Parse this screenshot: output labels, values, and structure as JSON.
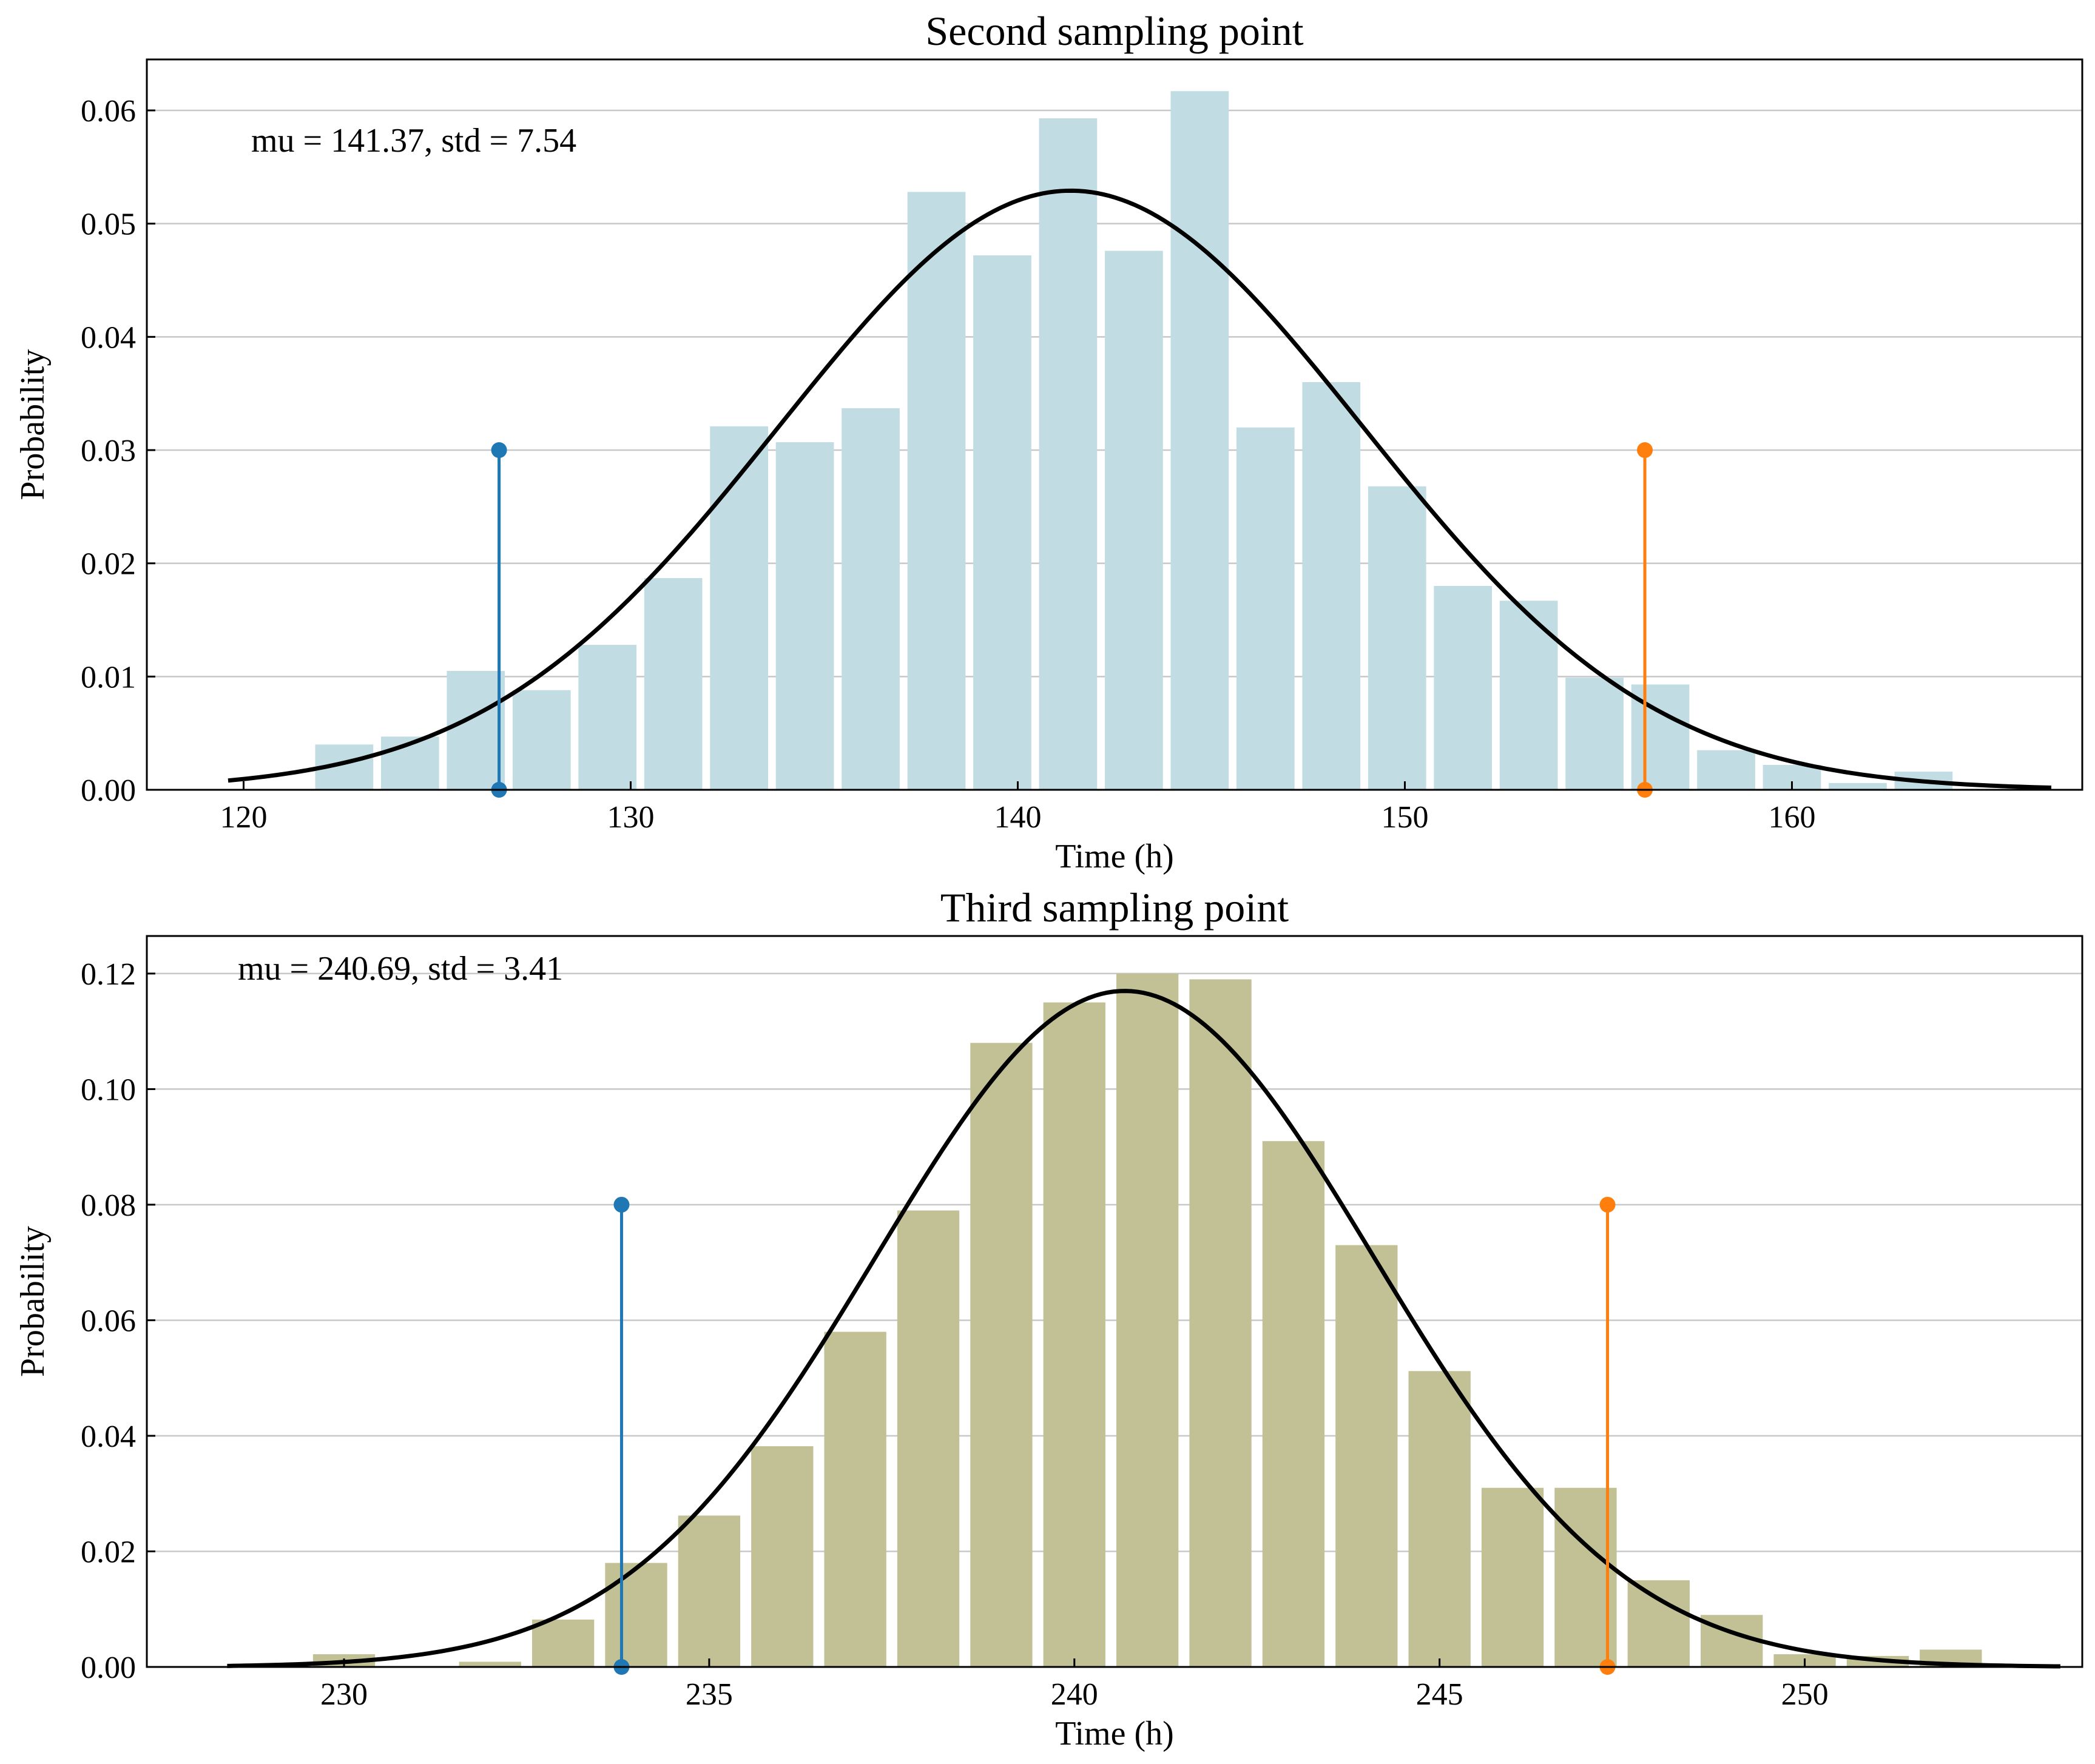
{
  "chart_data": [
    {
      "type": "bar",
      "title": "Second sampling point",
      "xlabel": "Time (h)",
      "ylabel": "Probability",
      "annotation": "mu = 141.37,  std = 7.54",
      "xlim": [
        117.5,
        167.5
      ],
      "ylim": [
        0,
        0.0645
      ],
      "xticks": [
        120,
        130,
        140,
        150,
        160
      ],
      "yticks": [
        0.0,
        0.01,
        0.02,
        0.03,
        0.04,
        0.05,
        0.06
      ],
      "xtick_labels": [
        "120",
        "130",
        "140",
        "150",
        "160"
      ],
      "ytick_labels": [
        "0.00",
        "0.01",
        "0.02",
        "0.03",
        "0.04",
        "0.05",
        "0.06"
      ],
      "grid": "horizontal",
      "bar_color": "#c2dce3",
      "bar_width": 1.5,
      "bars": {
        "x": [
          122.6,
          124.3,
          126.0,
          127.7,
          129.4,
          131.1,
          132.8,
          134.5,
          136.2,
          137.9,
          139.6,
          141.3,
          143.0,
          144.7,
          146.4,
          148.1,
          149.8,
          151.5,
          153.2,
          154.9,
          156.6,
          158.3,
          160.0,
          161.7,
          163.4
        ],
        "values": [
          0.004,
          0.0047,
          0.0105,
          0.0088,
          0.0128,
          0.0187,
          0.0321,
          0.0307,
          0.0337,
          0.0528,
          0.0472,
          0.0593,
          0.0476,
          0.0617,
          0.032,
          0.036,
          0.0268,
          0.018,
          0.0167,
          0.0099,
          0.0093,
          0.0035,
          0.0022,
          0.0006,
          0.0016
        ]
      },
      "fit": {
        "type": "normal",
        "mu": 141.37,
        "std": 7.54,
        "x_range": [
          119.6,
          166.7
        ]
      },
      "markers": [
        {
          "x": 126.6,
          "value": 0.03,
          "color": "#1f77b4"
        },
        {
          "x": 156.2,
          "value": 0.03,
          "color": "#ff7f0e"
        }
      ]
    },
    {
      "type": "bar",
      "title": "Third sampling point",
      "xlabel": "Time (h)",
      "ylabel": "Probability",
      "annotation": "mu = 240.69,  std = 3.41",
      "xlim": [
        227.3,
        253.8
      ],
      "ylim": [
        0,
        0.1265
      ],
      "xticks": [
        230,
        235,
        240,
        245,
        250
      ],
      "yticks": [
        0.0,
        0.02,
        0.04,
        0.06,
        0.08,
        0.1,
        0.12
      ],
      "xtick_labels": [
        "230",
        "235",
        "240",
        "245",
        "250"
      ],
      "ytick_labels": [
        "0.00",
        "0.02",
        "0.04",
        "0.06",
        "0.08",
        "0.10",
        "0.12"
      ],
      "grid": "horizontal",
      "bar_color": "#c2c196",
      "bar_width": 0.85,
      "bars": {
        "x": [
          230.0,
          231.0,
          232.0,
          233.0,
          234.0,
          235.0,
          236.0,
          237.0,
          238.0,
          239.0,
          240.0,
          241.0,
          242.0,
          243.0,
          244.0,
          245.0,
          246.0,
          247.0,
          248.0,
          249.0,
          250.0,
          251.0,
          252.0
        ],
        "values": [
          0.0022,
          0.0,
          0.0009,
          0.0082,
          0.018,
          0.0262,
          0.0382,
          0.058,
          0.079,
          0.108,
          0.115,
          0.12,
          0.119,
          0.091,
          0.073,
          0.0512,
          0.031,
          0.031,
          0.015,
          0.009,
          0.0022,
          0.0019,
          0.003
        ]
      },
      "fit": {
        "type": "normal",
        "mu": 240.69,
        "std": 3.41,
        "x_range": [
          228.4,
          253.5
        ]
      },
      "markers": [
        {
          "x": 233.8,
          "value": 0.08,
          "color": "#1f77b4"
        },
        {
          "x": 247.3,
          "value": 0.08,
          "color": "#ff7f0e"
        }
      ]
    }
  ]
}
